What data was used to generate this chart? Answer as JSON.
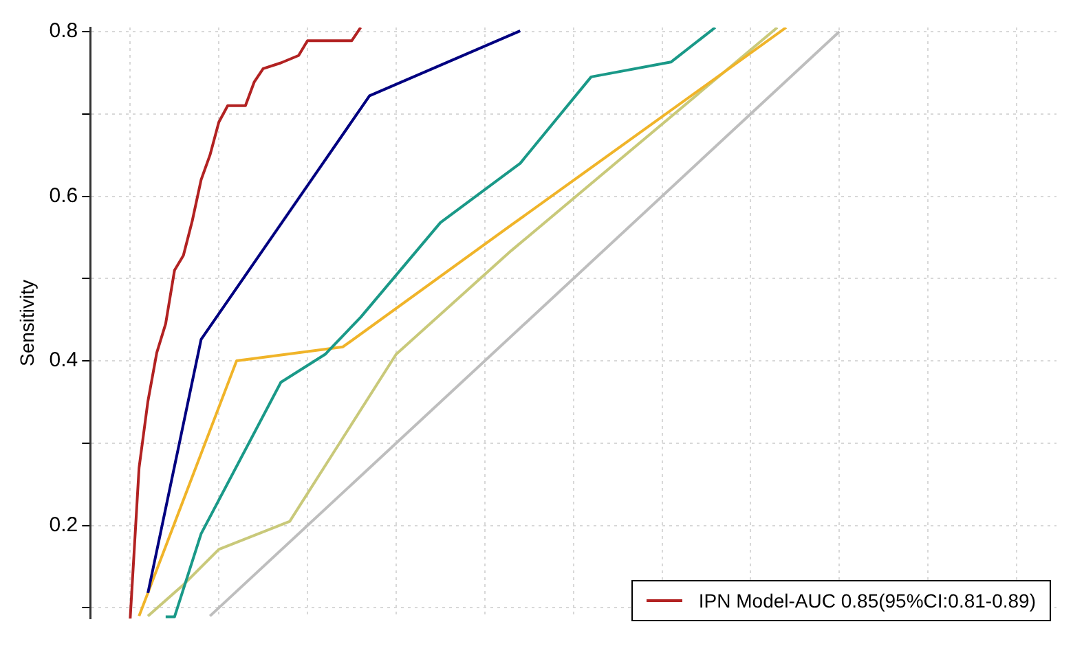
{
  "chart_data": {
    "type": "line",
    "ylabel": "Sensitivity",
    "categories": [
      null,
      null,
      null,
      null,
      null,
      null,
      null,
      null,
      null,
      null,
      null,
      null,
      null,
      null,
      null,
      null,
      null,
      null,
      null,
      null,
      null,
      null,
      null,
      null,
      null,
      null,
      null,
      null,
      null,
      null,
      null,
      null,
      null,
      null,
      null,
      null,
      null,
      null,
      null,
      null,
      null,
      null,
      null,
      null,
      null,
      null,
      null,
      null,
      null,
      null,
      null,
      null,
      null,
      null,
      null,
      null,
      null,
      null,
      null,
      null,
      null,
      null,
      null,
      null,
      null,
      null,
      null,
      null,
      null,
      null,
      null,
      null,
      null,
      null,
      null,
      null,
      null,
      null,
      null,
      null,
      null,
      null,
      null,
      null,
      null,
      null,
      null,
      null,
      null,
      null,
      null,
      null,
      null,
      null,
      null,
      null,
      null,
      null,
      null,
      null,
      null,
      null,
      null,
      null,
      null,
      null,
      null,
      null,
      null
    ],
    "ylim": [
      0.087,
      0.805
    ],
    "yticks": [
      {
        "value": 0.1,
        "label": null
      },
      0.2,
      {
        "value": 0.3,
        "label": null
      },
      0.4,
      {
        "value": 0.5,
        "label": null
      },
      0.6,
      {
        "value": 0.7,
        "label": null
      },
      0.8
    ],
    "tick_labels": "y",
    "grid": true,
    "legend": "bottom right",
    "series": [
      {
        "name": "IPN Model-AUC 0.85(95%CI:0.81-0.89)",
        "color": "#b22222",
        "values": [
          null,
          null,
          null,
          null,
          0.087,
          0.27,
          0.351,
          0.41,
          0.445,
          0.51,
          0.528,
          0.57,
          0.62,
          0.65,
          0.69,
          0.71,
          null,
          0.71,
          0.739,
          0.755,
          null,
          0.762,
          null,
          0.771,
          0.789,
          null,
          null,
          null,
          null,
          0.789,
          0.805,
          null,
          null,
          null,
          null,
          null,
          null,
          null,
          null,
          null,
          null,
          null,
          null,
          null,
          null,
          null,
          null,
          null,
          null,
          null,
          null,
          null,
          null,
          null,
          null,
          null,
          null,
          null,
          null,
          null,
          null,
          null,
          null,
          null,
          null,
          null,
          null,
          null,
          null,
          null,
          null,
          null,
          null,
          null,
          null,
          null,
          null,
          null,
          null,
          null,
          null,
          null,
          null,
          null,
          null,
          null,
          null,
          null,
          null,
          null,
          null,
          null,
          null,
          null,
          null,
          null,
          null,
          null,
          null,
          null,
          null,
          null,
          null,
          null,
          null,
          null,
          null,
          null,
          null
        ]
      },
      {
        "color": "#000080",
        "values": [
          null,
          null,
          null,
          null,
          null,
          null,
          0.118,
          null,
          null,
          null,
          null,
          null,
          0.426,
          null,
          null,
          null,
          null,
          null,
          null,
          null,
          null,
          null,
          null,
          null,
          null,
          null,
          null,
          null,
          null,
          null,
          null,
          0.722,
          null,
          null,
          null,
          null,
          null,
          null,
          null,
          null,
          null,
          null,
          null,
          null,
          null,
          null,
          null,
          null,
          0.801,
          null,
          null,
          null,
          null,
          null,
          null,
          null,
          null,
          null,
          null,
          null,
          null,
          null,
          null,
          null,
          null,
          null,
          null,
          null,
          null,
          null,
          null,
          null,
          null,
          null,
          null,
          null,
          null,
          null,
          null,
          null,
          null,
          null,
          null,
          null,
          null,
          null,
          null,
          null,
          null,
          null,
          null,
          null,
          null,
          null,
          null,
          null,
          null,
          null,
          null,
          null,
          null,
          null,
          null,
          null,
          null,
          null,
          null,
          null,
          null
        ]
      },
      {
        "color": "#1a9988",
        "values": [
          null,
          null,
          null,
          null,
          null,
          null,
          null,
          null,
          0.089,
          0.089,
          null,
          null,
          0.19,
          null,
          null,
          null,
          null,
          null,
          null,
          null,
          null,
          0.374,
          null,
          null,
          null,
          null,
          0.408,
          null,
          null,
          null,
          0.453,
          null,
          null,
          null,
          null,
          null,
          null,
          null,
          null,
          0.568,
          null,
          null,
          null,
          null,
          null,
          null,
          null,
          null,
          0.64,
          null,
          null,
          null,
          null,
          null,
          null,
          null,
          0.745,
          null,
          null,
          null,
          null,
          null,
          null,
          null,
          null,
          0.763,
          null,
          null,
          null,
          null,
          0.805,
          null,
          null,
          null,
          null,
          null,
          null,
          null,
          null,
          null,
          null,
          null,
          null,
          null,
          null,
          null,
          null,
          null,
          null,
          null,
          null,
          null,
          null,
          null,
          null,
          null,
          null,
          null,
          null,
          null,
          null,
          null,
          null,
          null,
          null,
          null,
          null,
          null,
          null
        ]
      },
      {
        "color": "#f0b429",
        "values": [
          null,
          null,
          null,
          null,
          null,
          0.09,
          null,
          null,
          null,
          null,
          null,
          null,
          null,
          null,
          null,
          null,
          0.4,
          null,
          null,
          null,
          null,
          null,
          null,
          null,
          null,
          null,
          null,
          null,
          0.417,
          null,
          null,
          null,
          null,
          null,
          null,
          null,
          null,
          null,
          null,
          null,
          null,
          null,
          null,
          null,
          null,
          null,
          null,
          0.565,
          null,
          null,
          null,
          null,
          null,
          null,
          null,
          null,
          null,
          null,
          null,
          null,
          null,
          null,
          null,
          null,
          null,
          null,
          null,
          null,
          null,
          null,
          null,
          null,
          null,
          null,
          null,
          null,
          null,
          null,
          0.805,
          null,
          null,
          null,
          null,
          null,
          null,
          null,
          null,
          null,
          null,
          null,
          null,
          null,
          null,
          null,
          null,
          null,
          null,
          null,
          null,
          null,
          null,
          null,
          null,
          null,
          null,
          null,
          null,
          null,
          null
        ]
      },
      {
        "color": "#c9c97a",
        "values": [
          null,
          null,
          null,
          null,
          null,
          null,
          0.09,
          null,
          null,
          null,
          0.128,
          null,
          null,
          null,
          0.171,
          null,
          null,
          null,
          null,
          null,
          null,
          null,
          0.205,
          null,
          null,
          null,
          null,
          null,
          null,
          null,
          null,
          null,
          null,
          null,
          0.408,
          null,
          null,
          null,
          null,
          null,
          null,
          null,
          null,
          null,
          null,
          null,
          null,
          0.534,
          null,
          null,
          null,
          null,
          null,
          null,
          null,
          null,
          null,
          null,
          null,
          null,
          null,
          null,
          null,
          null,
          null,
          null,
          null,
          null,
          null,
          null,
          null,
          null,
          null,
          null,
          null,
          null,
          null,
          0.805,
          null,
          null,
          null,
          null,
          null,
          null,
          null,
          null,
          null,
          null,
          null,
          null,
          null,
          null,
          null,
          null,
          null,
          null,
          null,
          null,
          null,
          null,
          null,
          null,
          null,
          null,
          null,
          null,
          null,
          null,
          null
        ]
      },
      {
        "color": "#bebebe",
        "values": [
          null,
          null,
          null,
          null,
          null,
          null,
          null,
          null,
          null,
          null,
          null,
          null,
          null,
          0.09,
          null,
          null,
          null,
          null,
          null,
          null,
          null,
          null,
          null,
          null,
          null,
          null,
          null,
          null,
          null,
          null,
          null,
          null,
          null,
          null,
          null,
          null,
          null,
          null,
          null,
          null,
          null,
          null,
          null,
          null,
          null,
          null,
          null,
          null,
          null,
          null,
          null,
          null,
          null,
          null,
          null,
          null,
          null,
          null,
          null,
          null,
          null,
          null,
          null,
          null,
          null,
          null,
          null,
          null,
          null,
          null,
          null,
          null,
          null,
          null,
          null,
          null,
          null,
          null,
          null,
          null,
          null,
          null,
          null,
          null,
          0.8,
          null,
          null,
          null,
          null,
          null,
          null,
          null,
          null,
          null,
          null,
          null,
          null,
          null,
          null,
          null,
          null,
          null,
          null,
          null,
          null,
          null,
          null,
          null,
          null
        ]
      }
    ]
  }
}
